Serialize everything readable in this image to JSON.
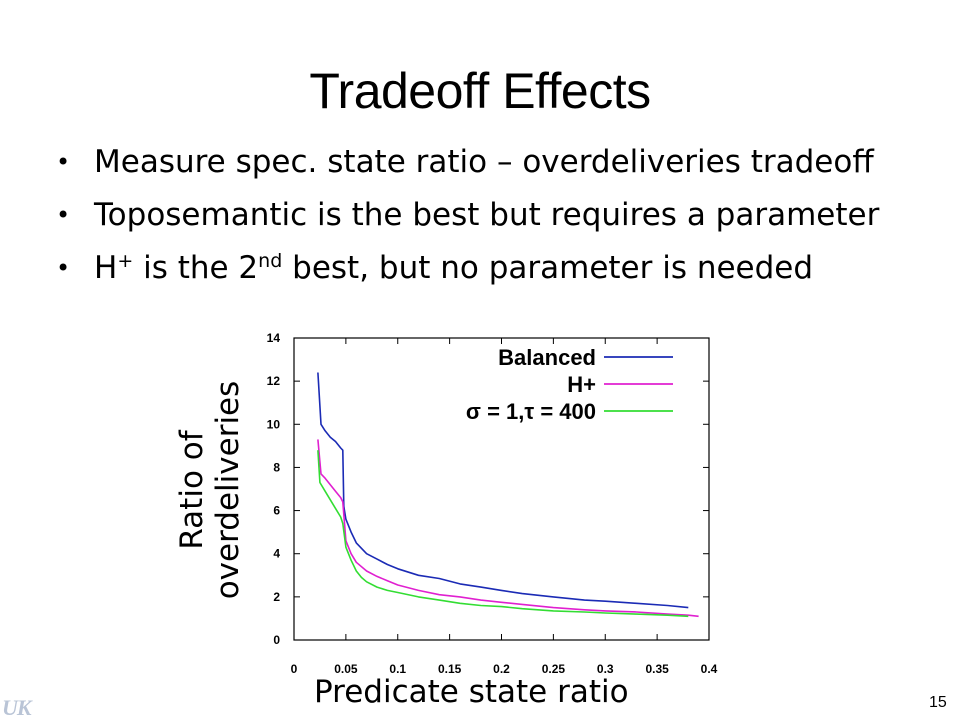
{
  "slide": {
    "title": "Tradeoff Effects",
    "bullets": [
      {
        "text": "Measure spec. state ratio – overdeliveries tradeoff"
      },
      {
        "text": "Toposemantic is the best but requires a parameter"
      },
      {
        "pre": "H",
        "sup1": "+",
        "mid": " is the 2",
        "sup2": "nd",
        "post": " best, but no parameter is needed"
      }
    ],
    "bullet_glyph": "•",
    "page_number": "15",
    "logo_text": "UK"
  },
  "chart_data": {
    "type": "line",
    "ylabel_lines": [
      "Ratio of",
      "overdeliveries"
    ],
    "xlabel": "Predicate state ratio",
    "xlim": [
      0,
      0.4
    ],
    "ylim": [
      0,
      14
    ],
    "x_ticks": [
      "0",
      "0.05",
      "0.1",
      "0.15",
      "0.2",
      "0.25",
      "0.3",
      "0.35",
      "0.4"
    ],
    "y_ticks": [
      "0",
      "2",
      "4",
      "6",
      "8",
      "10",
      "12",
      "14"
    ],
    "grid": false,
    "legend_position": "top-right",
    "series": [
      {
        "name": "Balanced",
        "color": "#1b2bb5",
        "points": [
          [
            0.023,
            12.4
          ],
          [
            0.026,
            10.0
          ],
          [
            0.03,
            9.7
          ],
          [
            0.035,
            9.4
          ],
          [
            0.04,
            9.2
          ],
          [
            0.045,
            8.9
          ],
          [
            0.047,
            8.8
          ],
          [
            0.048,
            6.2
          ],
          [
            0.05,
            5.6
          ],
          [
            0.055,
            5.0
          ],
          [
            0.06,
            4.5
          ],
          [
            0.07,
            4.0
          ],
          [
            0.08,
            3.75
          ],
          [
            0.09,
            3.5
          ],
          [
            0.1,
            3.3
          ],
          [
            0.12,
            3.0
          ],
          [
            0.14,
            2.85
          ],
          [
            0.16,
            2.6
          ],
          [
            0.18,
            2.45
          ],
          [
            0.2,
            2.3
          ],
          [
            0.22,
            2.15
          ],
          [
            0.25,
            2.0
          ],
          [
            0.28,
            1.85
          ],
          [
            0.3,
            1.8
          ],
          [
            0.33,
            1.7
          ],
          [
            0.36,
            1.6
          ],
          [
            0.38,
            1.5
          ]
        ]
      },
      {
        "name": "H+",
        "color": "#e020d0",
        "points": [
          [
            0.023,
            9.3
          ],
          [
            0.026,
            7.7
          ],
          [
            0.03,
            7.5
          ],
          [
            0.035,
            7.2
          ],
          [
            0.04,
            6.9
          ],
          [
            0.045,
            6.6
          ],
          [
            0.047,
            6.4
          ],
          [
            0.05,
            4.6
          ],
          [
            0.055,
            4.0
          ],
          [
            0.06,
            3.6
          ],
          [
            0.07,
            3.2
          ],
          [
            0.08,
            2.95
          ],
          [
            0.09,
            2.75
          ],
          [
            0.1,
            2.55
          ],
          [
            0.12,
            2.3
          ],
          [
            0.14,
            2.1
          ],
          [
            0.16,
            2.0
          ],
          [
            0.18,
            1.85
          ],
          [
            0.2,
            1.75
          ],
          [
            0.22,
            1.65
          ],
          [
            0.25,
            1.5
          ],
          [
            0.28,
            1.4
          ],
          [
            0.3,
            1.35
          ],
          [
            0.33,
            1.3
          ],
          [
            0.36,
            1.2
          ],
          [
            0.38,
            1.15
          ],
          [
            0.39,
            1.1
          ]
        ]
      },
      {
        "name": "σ = 1,τ = 400",
        "color": "#33dd33",
        "points": [
          [
            0.023,
            8.8
          ],
          [
            0.025,
            7.3
          ],
          [
            0.03,
            6.9
          ],
          [
            0.035,
            6.5
          ],
          [
            0.04,
            6.1
          ],
          [
            0.045,
            5.7
          ],
          [
            0.047,
            5.4
          ],
          [
            0.05,
            4.3
          ],
          [
            0.055,
            3.7
          ],
          [
            0.06,
            3.2
          ],
          [
            0.065,
            2.9
          ],
          [
            0.07,
            2.7
          ],
          [
            0.08,
            2.45
          ],
          [
            0.09,
            2.3
          ],
          [
            0.1,
            2.2
          ],
          [
            0.12,
            2.0
          ],
          [
            0.14,
            1.85
          ],
          [
            0.16,
            1.7
          ],
          [
            0.18,
            1.6
          ],
          [
            0.2,
            1.55
          ],
          [
            0.22,
            1.45
          ],
          [
            0.25,
            1.35
          ],
          [
            0.28,
            1.3
          ],
          [
            0.3,
            1.25
          ],
          [
            0.33,
            1.2
          ],
          [
            0.36,
            1.15
          ],
          [
            0.38,
            1.1
          ]
        ]
      }
    ]
  }
}
